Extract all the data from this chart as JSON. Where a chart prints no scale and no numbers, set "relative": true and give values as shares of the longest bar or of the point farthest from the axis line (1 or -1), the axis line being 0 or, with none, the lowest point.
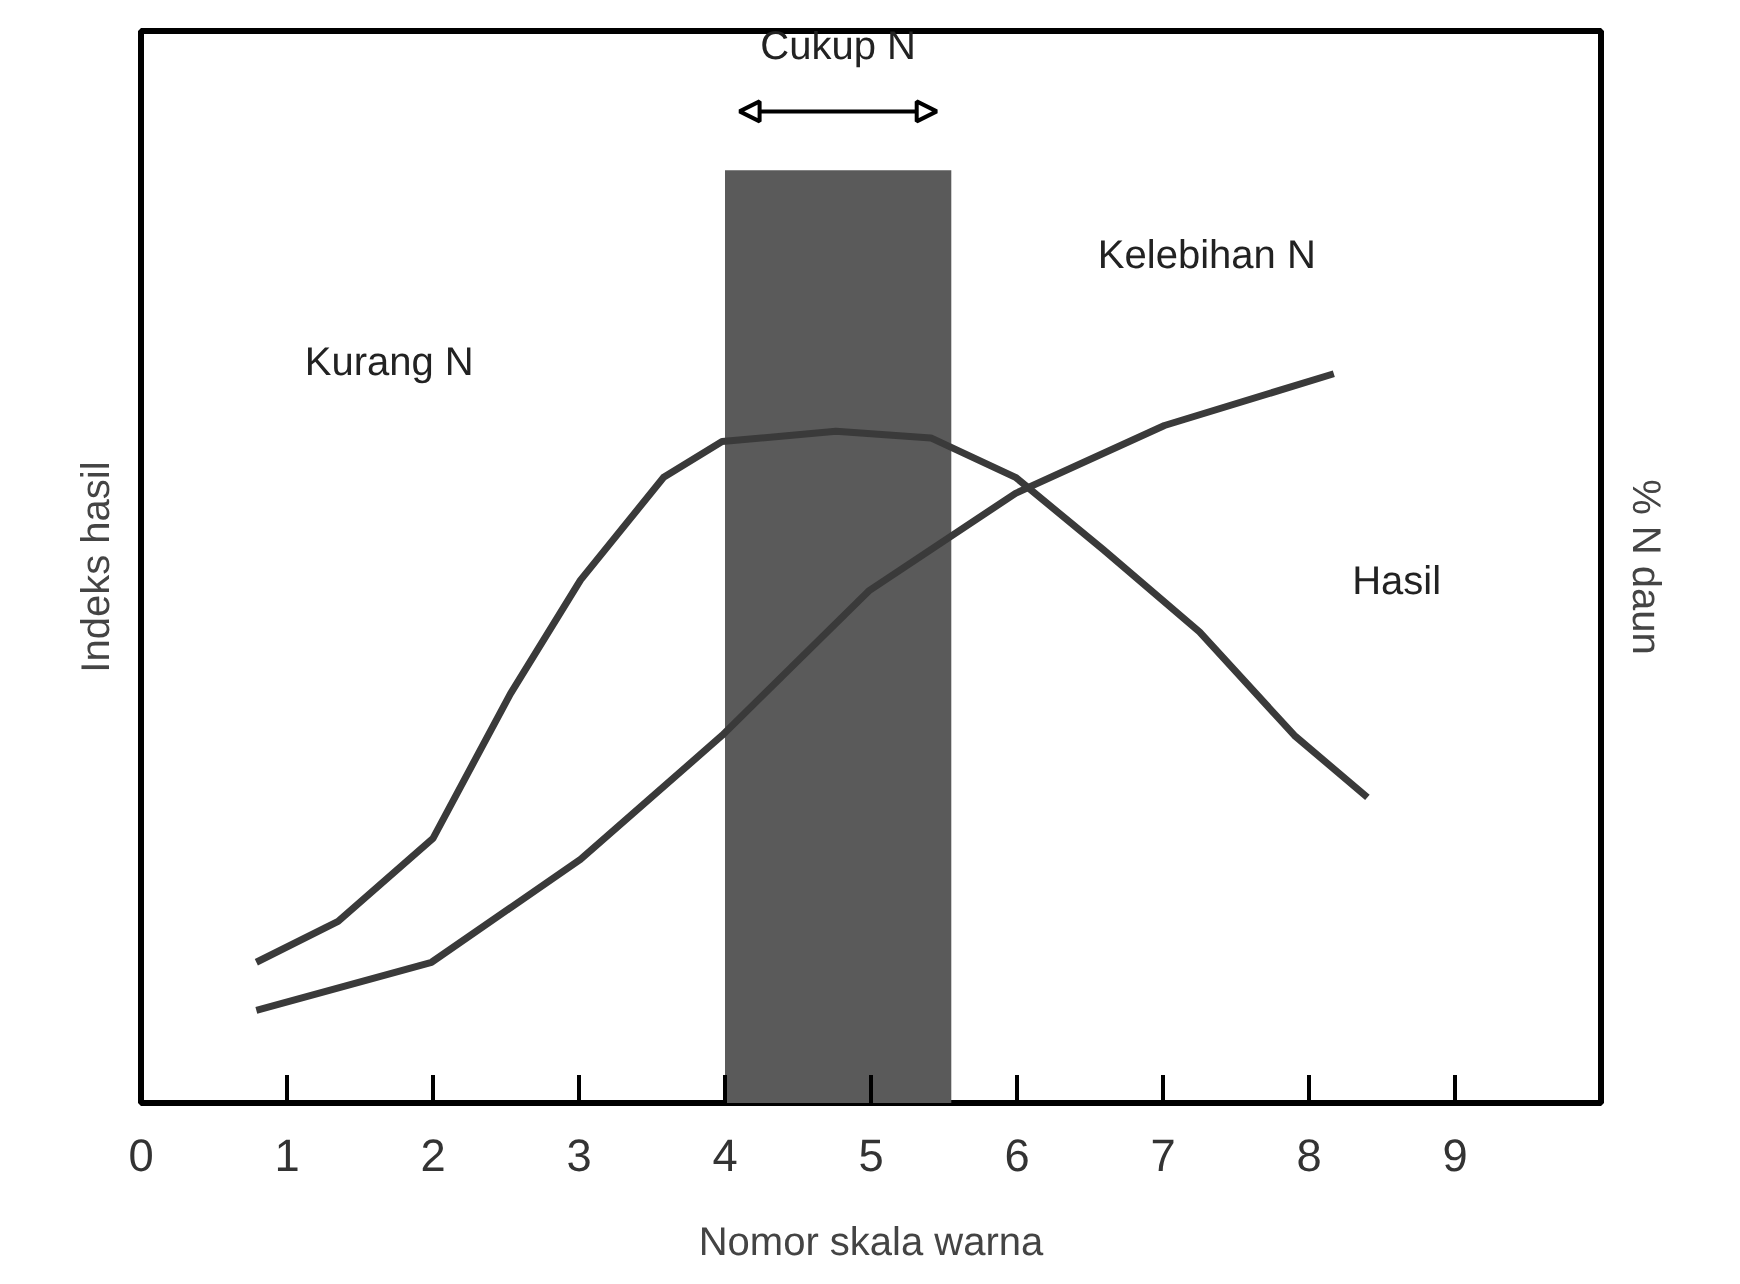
{
  "chart_data": {
    "type": "line",
    "relative": true,
    "xlabel": "Nomor skala warna",
    "ylabel": "Indeks hasil",
    "y2label": "% N daun",
    "xlim": [
      0,
      10
    ],
    "xticks": [
      0,
      1,
      2,
      3,
      4,
      5,
      6,
      7,
      8,
      9
    ],
    "grid": false,
    "marker": "none",
    "line_style": "solid",
    "series": [
      {
        "name": "Hasil",
        "color": "#3a3a3a",
        "x": [
          0.79,
          1.35,
          2.0,
          2.53,
          3.01,
          3.58,
          3.98,
          4.76,
          5.41,
          5.99,
          6.59,
          7.25,
          7.9,
          8.4
        ],
        "values": [
          0.193,
          0.249,
          0.363,
          0.561,
          0.717,
          0.858,
          0.907,
          0.921,
          0.912,
          0.858,
          0.759,
          0.646,
          0.504,
          0.419
        ]
      },
      {
        "color": "#3a3a3a",
        "x": [
          0.79,
          1.99,
          3.01,
          3.98,
          4.99,
          5.99,
          7.01,
          8.17
        ],
        "values": [
          0.127,
          0.193,
          0.334,
          0.504,
          0.703,
          0.836,
          0.929,
          1
        ]
      }
    ],
    "bands": [
      {
        "axis": "x",
        "from": 4.0,
        "to": 5.55,
        "label": "Cukup N",
        "color": "#5a5a5a"
      }
    ],
    "annotations": [
      "Kurang N",
      "Kelebihan N"
    ]
  }
}
